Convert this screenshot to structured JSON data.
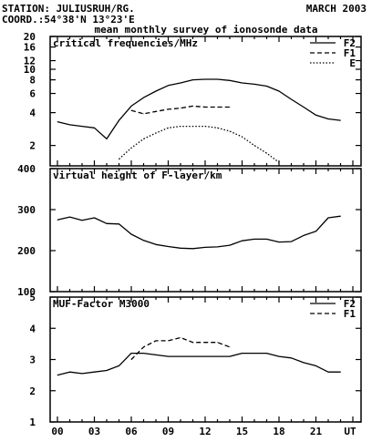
{
  "header": {
    "station": "STATION: JULIUSRUH/RG.",
    "date": "MARCH 2003",
    "coord": "COORD.:54°38'N 13°23'E",
    "subtitle": "mean monthly survey of ionosonde data"
  },
  "x_ticks": [
    "00",
    "03",
    "06",
    "09",
    "12",
    "15",
    "18",
    "21",
    "UT"
  ],
  "chart_data": [
    {
      "type": "line",
      "title": "critical frequencies/MHz",
      "yscale": "log",
      "ylim": [
        1.3,
        20
      ],
      "yticks": [
        "2",
        "4",
        "6",
        "8",
        "10",
        "12",
        "16",
        "20"
      ],
      "xlim": [
        0,
        24
      ],
      "legend_position": "top-right",
      "series": [
        {
          "name": "F2",
          "style": "solid",
          "x": [
            0,
            1,
            2,
            3,
            4,
            5,
            6,
            7,
            8,
            9,
            10,
            11,
            12,
            13,
            14,
            15,
            16,
            17,
            18,
            19,
            20,
            21,
            22,
            23
          ],
          "y": [
            3.3,
            3.1,
            3.0,
            2.9,
            2.3,
            3.4,
            4.6,
            5.5,
            6.3,
            7.1,
            7.5,
            8.0,
            8.1,
            8.1,
            7.9,
            7.5,
            7.3,
            7.0,
            6.3,
            5.3,
            4.5,
            3.8,
            3.5,
            3.4
          ]
        },
        {
          "name": "F1",
          "style": "dashed",
          "x": [
            6,
            7,
            8,
            9,
            10,
            11,
            12,
            13,
            14
          ],
          "y": [
            4.2,
            3.9,
            4.1,
            4.3,
            4.4,
            4.6,
            4.5,
            4.5,
            4.5
          ]
        },
        {
          "name": "E",
          "style": "dotted",
          "x": [
            5,
            6,
            7,
            8,
            9,
            10,
            11,
            12,
            13,
            14,
            15,
            16,
            17,
            18
          ],
          "y": [
            1.5,
            1.9,
            2.3,
            2.6,
            2.9,
            3.0,
            3.0,
            3.0,
            2.9,
            2.7,
            2.4,
            2.0,
            1.7,
            1.4
          ]
        }
      ]
    },
    {
      "type": "line",
      "title": "virtual height of F-layer/km",
      "ylim": [
        100,
        400
      ],
      "yticks": [
        "100",
        "200",
        "300",
        "400"
      ],
      "xlim": [
        0,
        24
      ],
      "series": [
        {
          "style": "solid",
          "x": [
            0,
            1,
            2,
            3,
            4,
            5,
            6,
            7,
            8,
            9,
            10,
            11,
            12,
            13,
            14,
            15,
            16,
            17,
            18,
            19,
            20,
            21,
            22,
            23
          ],
          "y": [
            275,
            282,
            274,
            280,
            266,
            265,
            240,
            225,
            215,
            210,
            206,
            205,
            208,
            209,
            213,
            224,
            228,
            228,
            221,
            222,
            237,
            247,
            280,
            284
          ]
        }
      ]
    },
    {
      "type": "line",
      "title": "MUF-Factor M3000",
      "ylim": [
        1,
        5
      ],
      "yticks": [
        "1",
        "2",
        "3",
        "4",
        "5"
      ],
      "xlim": [
        0,
        24
      ],
      "legend_position": "top-right",
      "series": [
        {
          "name": "F2",
          "style": "solid",
          "x": [
            0,
            1,
            2,
            3,
            4,
            5,
            6,
            7,
            8,
            9,
            10,
            11,
            12,
            13,
            14,
            15,
            16,
            17,
            18,
            19,
            20,
            21,
            22,
            23
          ],
          "y": [
            2.5,
            2.6,
            2.55,
            2.6,
            2.65,
            2.8,
            3.2,
            3.2,
            3.15,
            3.1,
            3.1,
            3.1,
            3.1,
            3.1,
            3.1,
            3.2,
            3.2,
            3.2,
            3.1,
            3.05,
            2.9,
            2.8,
            2.6,
            2.6
          ]
        },
        {
          "name": "F1",
          "style": "dashed",
          "x": [
            6,
            7,
            8,
            9,
            10,
            11,
            12,
            13,
            14
          ],
          "y": [
            3.0,
            3.4,
            3.6,
            3.6,
            3.7,
            3.55,
            3.55,
            3.55,
            3.4
          ]
        }
      ]
    }
  ]
}
